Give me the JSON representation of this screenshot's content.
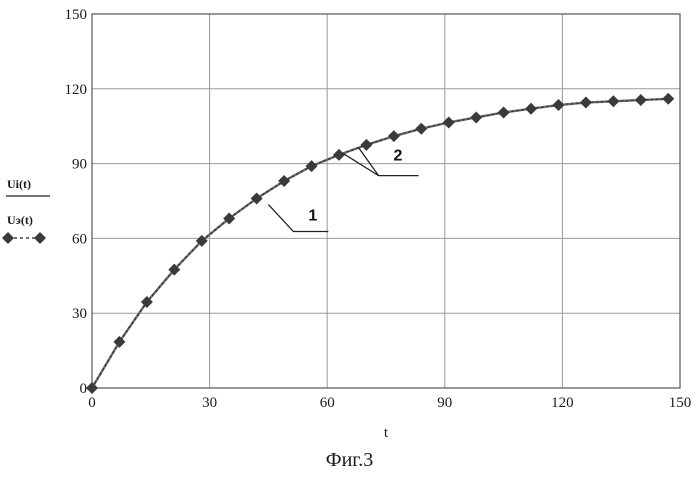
{
  "caption": "Фиг.3",
  "chart_data": {
    "type": "line",
    "xlabel": "t",
    "ylabel_top": "Ui(t)",
    "ylabel_bottom": "Uэ(t)",
    "xlim": [
      0,
      150
    ],
    "ylim": [
      0,
      150
    ],
    "x_ticks": [
      "0",
      "30",
      "60",
      "90",
      "120",
      "150"
    ],
    "y_ticks": [
      "0",
      "30",
      "60",
      "90",
      "120",
      "150"
    ],
    "grid": true,
    "annotations": [
      {
        "text": "1",
        "target_x": 45,
        "target_y": 76
      },
      {
        "text": "2",
        "target_x": 68,
        "target_y": 96
      }
    ],
    "series": [
      {
        "name": "Ui(t)",
        "style": "solid",
        "color": "#6f6f6f",
        "x": [
          0,
          7,
          14,
          21,
          28,
          35,
          42,
          49,
          56,
          63,
          70,
          77,
          84,
          91,
          98,
          105,
          112,
          119,
          126,
          133,
          140,
          147
        ],
        "y": [
          0,
          18.5,
          34.5,
          47.5,
          59.0,
          68.0,
          76.0,
          83.0,
          89.0,
          93.5,
          97.5,
          101.0,
          104.0,
          106.5,
          108.5,
          110.5,
          112.0,
          113.5,
          114.5,
          115.0,
          115.5,
          116.0
        ]
      },
      {
        "name": "Uэ(t)",
        "style": "dashed-diamond",
        "color": "#3a3a3a",
        "x": [
          0,
          7,
          14,
          21,
          28,
          35,
          42,
          49,
          56,
          63,
          70,
          77,
          84,
          91,
          98,
          105,
          112,
          119,
          126,
          133,
          140,
          147
        ],
        "y": [
          0,
          18.5,
          34.5,
          47.5,
          59.0,
          68.0,
          76.0,
          83.0,
          89.0,
          93.5,
          97.5,
          101.0,
          104.0,
          106.5,
          108.5,
          110.5,
          112.0,
          113.5,
          114.5,
          115.0,
          115.5,
          116.0
        ]
      }
    ]
  }
}
